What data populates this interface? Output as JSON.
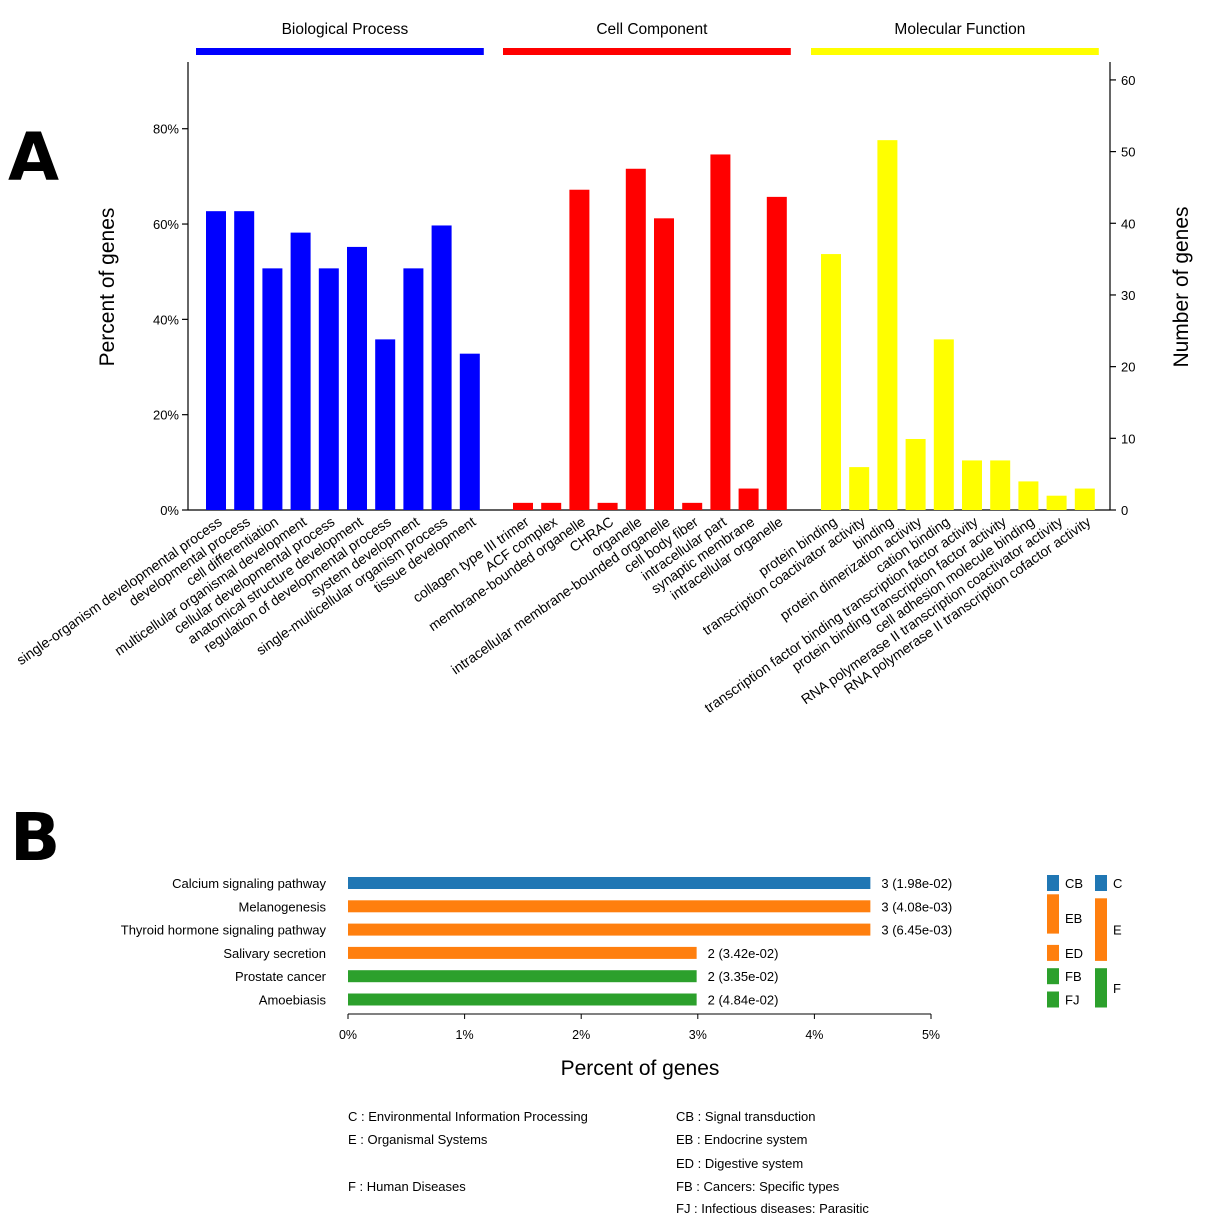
{
  "panel_a": {
    "letter": "A",
    "y_left_label": "Percent of genes",
    "y_right_label": "Number of genes"
  },
  "panel_b": {
    "letter": "B",
    "x_label": "Percent of genes"
  },
  "chart_data": [
    {
      "type": "bar",
      "panel": "A",
      "ylabel": "Percent of genes",
      "y2label": "Number of genes",
      "ylim": [
        0,
        0.94
      ],
      "yticks": [
        0,
        0.2,
        0.4,
        0.6,
        0.8
      ],
      "ytick_labels": [
        "0%",
        "20%",
        "40%",
        "60%",
        "80%"
      ],
      "y2lim": [
        0,
        62.5
      ],
      "y2ticks": [
        0,
        10,
        20,
        30,
        40,
        50,
        60
      ],
      "y2tick_labels": [
        "0",
        "10",
        "20",
        "30",
        "40",
        "50",
        "60"
      ],
      "groups": [
        {
          "name": "Biological Process",
          "color": "#0000FF",
          "categories": [
            "single-organism developmental process",
            "developmental process",
            "cell differentiation",
            "multicellular organismal development",
            "cellular developmental process",
            "anatomical structure development",
            "regulation of developmental process",
            "system development",
            "single-multicellular organism process",
            "tissue development"
          ],
          "values": [
            0.627,
            0.627,
            0.507,
            0.582,
            0.507,
            0.552,
            0.358,
            0.507,
            0.597,
            0.328
          ]
        },
        {
          "name": "Cell Component",
          "color": "#FF0000",
          "categories": [
            "collagen type III trimer",
            "ACF complex",
            "membrane-bounded organelle",
            "CHRAC",
            "organelle",
            "intracellular membrane-bounded organelle",
            "cell body fiber",
            "intracellular part",
            "synaptic membrane",
            "intracellular organelle"
          ],
          "values": [
            0.015,
            0.015,
            0.672,
            0.015,
            0.716,
            0.612,
            0.015,
            0.746,
            0.045,
            0.657
          ]
        },
        {
          "name": "Molecular Function",
          "color": "#FFFF00",
          "categories": [
            "protein binding",
            "transcription coactivator activity",
            "binding",
            "protein dimerization activity",
            "cation binding",
            "transcription factor binding transcription factor activity",
            "protein binding transcription factor activity",
            "cell adhesion molecule binding",
            "RNA polymerase II transcription coactivator activity",
            "RNA polymerase II transcription cofactor activity"
          ],
          "values": [
            0.537,
            0.09,
            0.776,
            0.149,
            0.358,
            0.104,
            0.104,
            0.06,
            0.03,
            0.045
          ]
        }
      ]
    },
    {
      "type": "bar",
      "orientation": "horizontal",
      "panel": "B",
      "xlabel": "Percent of genes",
      "xlim": [
        0,
        5
      ],
      "xticks": [
        0,
        1,
        2,
        3,
        4,
        5
      ],
      "xtick_labels": [
        "0%",
        "1%",
        "2%",
        "3%",
        "4%",
        "5%"
      ],
      "categories": [
        "Calcium signaling pathway",
        "Melanogenesis",
        "Thyroid hormone signaling pathway",
        "Salivary secretion",
        "Prostate cancer",
        "Amoebiasis"
      ],
      "values": [
        4.48,
        4.48,
        4.48,
        2.99,
        2.99,
        2.99
      ],
      "data_labels": [
        "3 (1.98e-02)",
        "3 (4.08e-03)",
        "3 (6.45e-03)",
        "2 (3.42e-02)",
        "2 (3.35e-02)",
        "2 (4.84e-02)"
      ],
      "bar_colors": [
        "#2077B4",
        "#FF7F0E",
        "#FF7F0E",
        "#FF7F0E",
        "#2CA02C",
        "#2CA02C"
      ],
      "subclass_legend": [
        {
          "label": "CB",
          "color": "#2077B4",
          "rows": [
            0
          ]
        },
        {
          "label": "EB",
          "color": "#FF7F0E",
          "rows": [
            1,
            2
          ]
        },
        {
          "label": "ED",
          "color": "#FF7F0E",
          "rows": [
            3
          ]
        },
        {
          "label": "FB",
          "color": "#2CA02C",
          "rows": [
            4
          ]
        },
        {
          "label": "FJ",
          "color": "#2CA02C",
          "rows": [
            5
          ]
        }
      ],
      "class_legend": [
        {
          "label": "C",
          "color": "#2077B4",
          "rows": [
            0
          ]
        },
        {
          "label": "E",
          "color": "#FF7F0E",
          "rows": [
            1,
            3
          ]
        },
        {
          "label": "F",
          "color": "#2CA02C",
          "rows": [
            4,
            5
          ]
        }
      ],
      "key": [
        "C : Environmental Information Processing",
        "E : Organismal Systems",
        "F : Human Diseases",
        "CB : Signal transduction",
        "EB : Endocrine system",
        "ED : Digestive system",
        "FB : Cancers: Specific types",
        "FJ : Infectious diseases: Parasitic"
      ]
    }
  ]
}
